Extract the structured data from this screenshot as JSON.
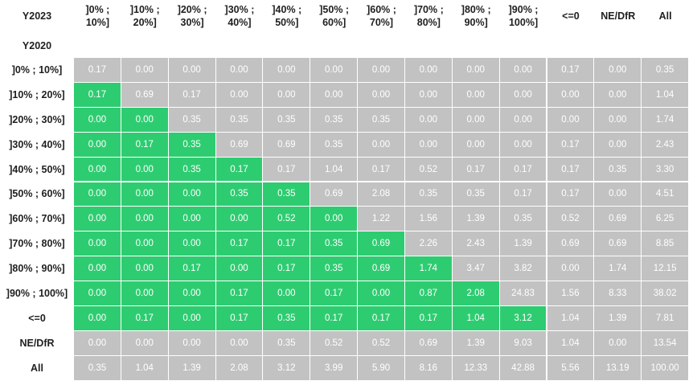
{
  "chart_data": {
    "type": "table",
    "corner_label": "Y2023",
    "row_axis_label": "Y2020",
    "columns": [
      "]0% ;\n10%]",
      "]10% ;\n20%]",
      "]20% ;\n30%]",
      "]30% ;\n40%]",
      "]40% ;\n50%]",
      "]50% ;\n60%]",
      "]60% ;\n70%]",
      "]70% ;\n80%]",
      "]80% ;\n90%]",
      "]90% ;\n100%]",
      "<=0",
      "NE/DfR",
      "All"
    ],
    "rows": [
      "]0% ; 10%]",
      "]10% ; 20%]",
      "]20% ; 30%]",
      "]30% ; 40%]",
      "]40% ; 50%]",
      "]50% ; 60%]",
      "]60% ; 70%]",
      "]70% ; 80%]",
      "]80% ; 90%]",
      "]90% ; 100%]",
      "<=0",
      "NE/DfR",
      "All"
    ],
    "values": [
      [
        "0.17",
        "0.00",
        "0.00",
        "0.00",
        "0.00",
        "0.00",
        "0.00",
        "0.00",
        "0.00",
        "0.00",
        "0.17",
        "0.00",
        "0.35"
      ],
      [
        "0.17",
        "0.69",
        "0.17",
        "0.00",
        "0.00",
        "0.00",
        "0.00",
        "0.00",
        "0.00",
        "0.00",
        "0.00",
        "0.00",
        "1.04"
      ],
      [
        "0.00",
        "0.00",
        "0.35",
        "0.35",
        "0.35",
        "0.35",
        "0.35",
        "0.00",
        "0.00",
        "0.00",
        "0.00",
        "0.00",
        "1.74"
      ],
      [
        "0.00",
        "0.17",
        "0.35",
        "0.69",
        "0.69",
        "0.35",
        "0.00",
        "0.00",
        "0.00",
        "0.00",
        "0.17",
        "0.00",
        "2.43"
      ],
      [
        "0.00",
        "0.00",
        "0.35",
        "0.17",
        "0.17",
        "1.04",
        "0.17",
        "0.52",
        "0.17",
        "0.17",
        "0.17",
        "0.35",
        "3.30"
      ],
      [
        "0.00",
        "0.00",
        "0.00",
        "0.35",
        "0.35",
        "0.69",
        "2.08",
        "0.35",
        "0.35",
        "0.17",
        "0.17",
        "0.00",
        "4.51"
      ],
      [
        "0.00",
        "0.00",
        "0.00",
        "0.00",
        "0.52",
        "0.00",
        "1.22",
        "1.56",
        "1.39",
        "0.35",
        "0.52",
        "0.69",
        "6.25"
      ],
      [
        "0.00",
        "0.00",
        "0.00",
        "0.17",
        "0.17",
        "0.35",
        "0.69",
        "2.26",
        "2.43",
        "1.39",
        "0.69",
        "0.69",
        "8.85"
      ],
      [
        "0.00",
        "0.00",
        "0.17",
        "0.00",
        "0.17",
        "0.35",
        "0.69",
        "1.74",
        "3.47",
        "3.82",
        "0.00",
        "1.74",
        "12.15"
      ],
      [
        "0.00",
        "0.00",
        "0.00",
        "0.17",
        "0.00",
        "0.17",
        "0.00",
        "0.87",
        "2.08",
        "24.83",
        "1.56",
        "8.33",
        "38.02"
      ],
      [
        "0.00",
        "0.17",
        "0.00",
        "0.17",
        "0.35",
        "0.17",
        "0.17",
        "0.17",
        "1.04",
        "3.12",
        "1.04",
        "1.39",
        "7.81"
      ],
      [
        "0.00",
        "0.00",
        "0.00",
        "0.00",
        "0.35",
        "0.52",
        "0.52",
        "0.69",
        "1.39",
        "9.03",
        "1.04",
        "0.00",
        "13.54"
      ],
      [
        "0.35",
        "1.04",
        "1.39",
        "2.08",
        "3.12",
        "3.99",
        "5.90",
        "8.16",
        "12.33",
        "42.88",
        "5.56",
        "13.19",
        "100.00"
      ]
    ],
    "highlight_rule": "cells below the diagonal (column index < row index) within the first 11 rows and first 10 columns",
    "colors": {
      "highlight": "#2ecc71",
      "default": "#c2c2c2",
      "cell_text": "#ffffff"
    }
  }
}
